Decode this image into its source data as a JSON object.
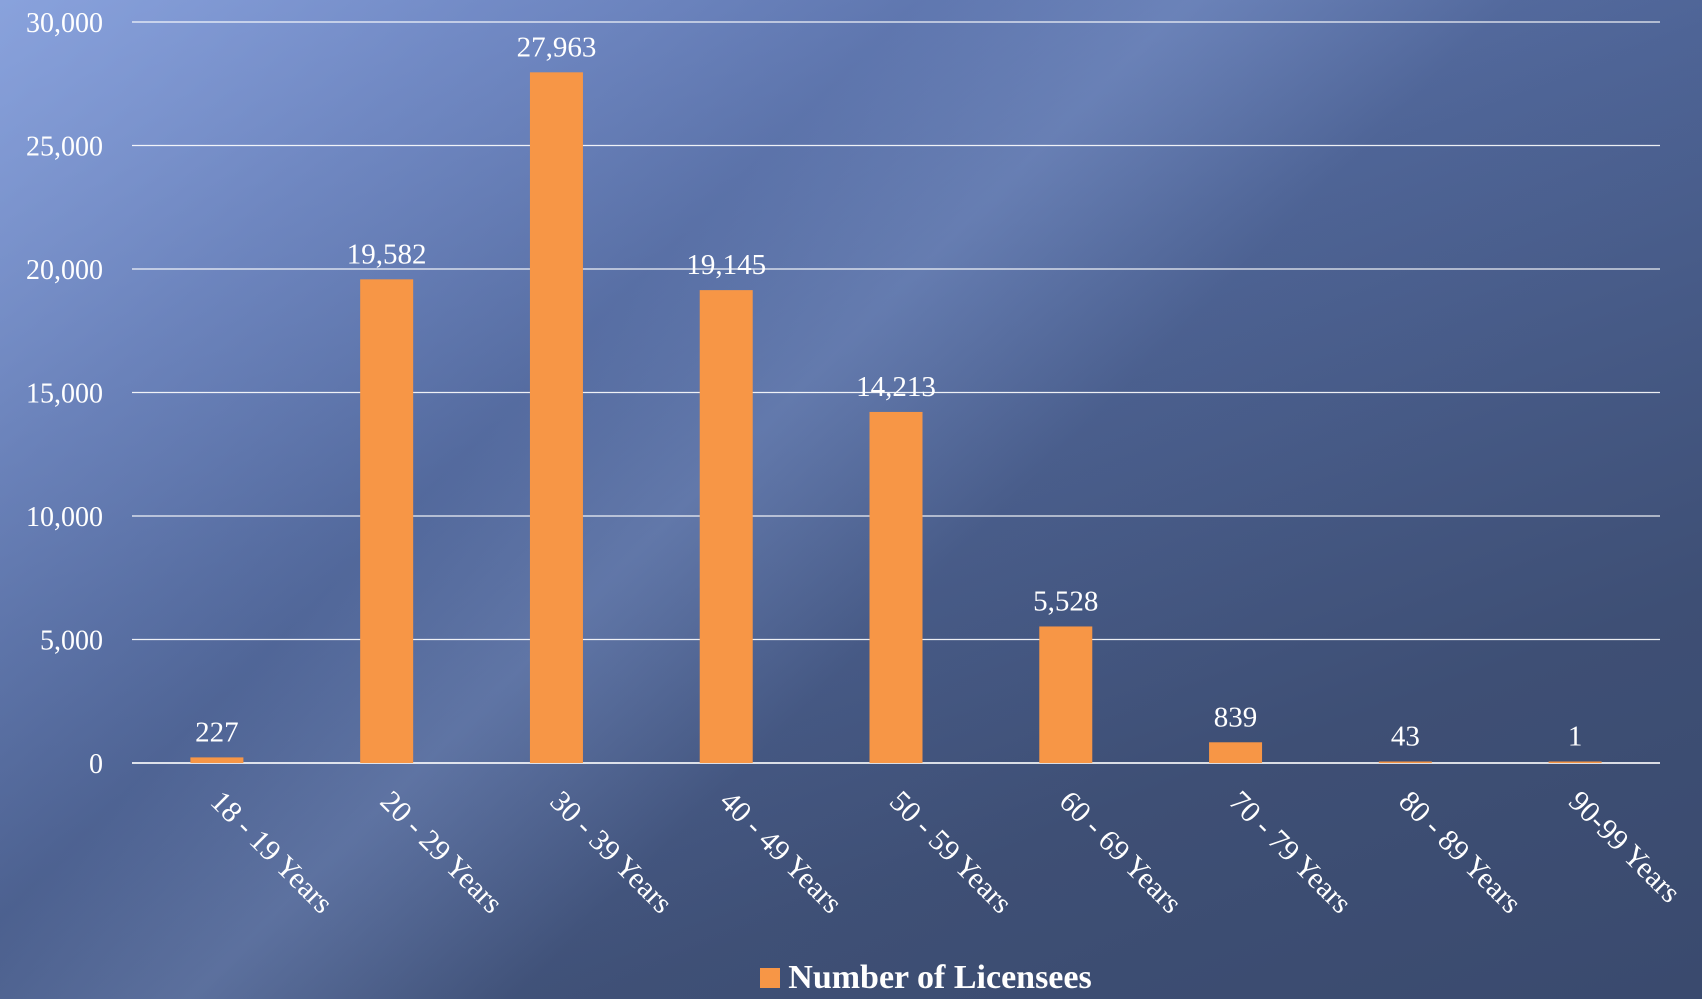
{
  "chart_data": {
    "type": "bar",
    "categories": [
      "18 - 19 Years",
      "20 - 29 Years",
      "30 - 39 Years",
      "40 - 49 Years",
      "50 - 59 Years",
      "60 - 69 Years",
      "70 - 79 Years",
      "80 - 89 Years",
      "90-99 Years"
    ],
    "series": [
      {
        "name": "Number of Licensees",
        "values": [
          227,
          19582,
          27963,
          19145,
          14213,
          5528,
          839,
          43,
          1
        ],
        "data_labels": [
          "227",
          "19,582",
          "27,963",
          "19,145",
          "14,213",
          "5,528",
          "839",
          "43",
          "1"
        ]
      }
    ],
    "ylim": [
      0,
      30000
    ],
    "y_ticks": [
      0,
      5000,
      10000,
      15000,
      20000,
      25000,
      30000
    ],
    "y_tick_labels": [
      "0",
      "5,000",
      "10,000",
      "15,000",
      "20,000",
      "25,000",
      "30,000"
    ],
    "grid": true,
    "legend_position": "bottom",
    "colors": {
      "bar": "#f79646",
      "grid": "#ffffff",
      "text": "#ffffff"
    }
  },
  "legend": {
    "label": "Number of Licensees"
  }
}
